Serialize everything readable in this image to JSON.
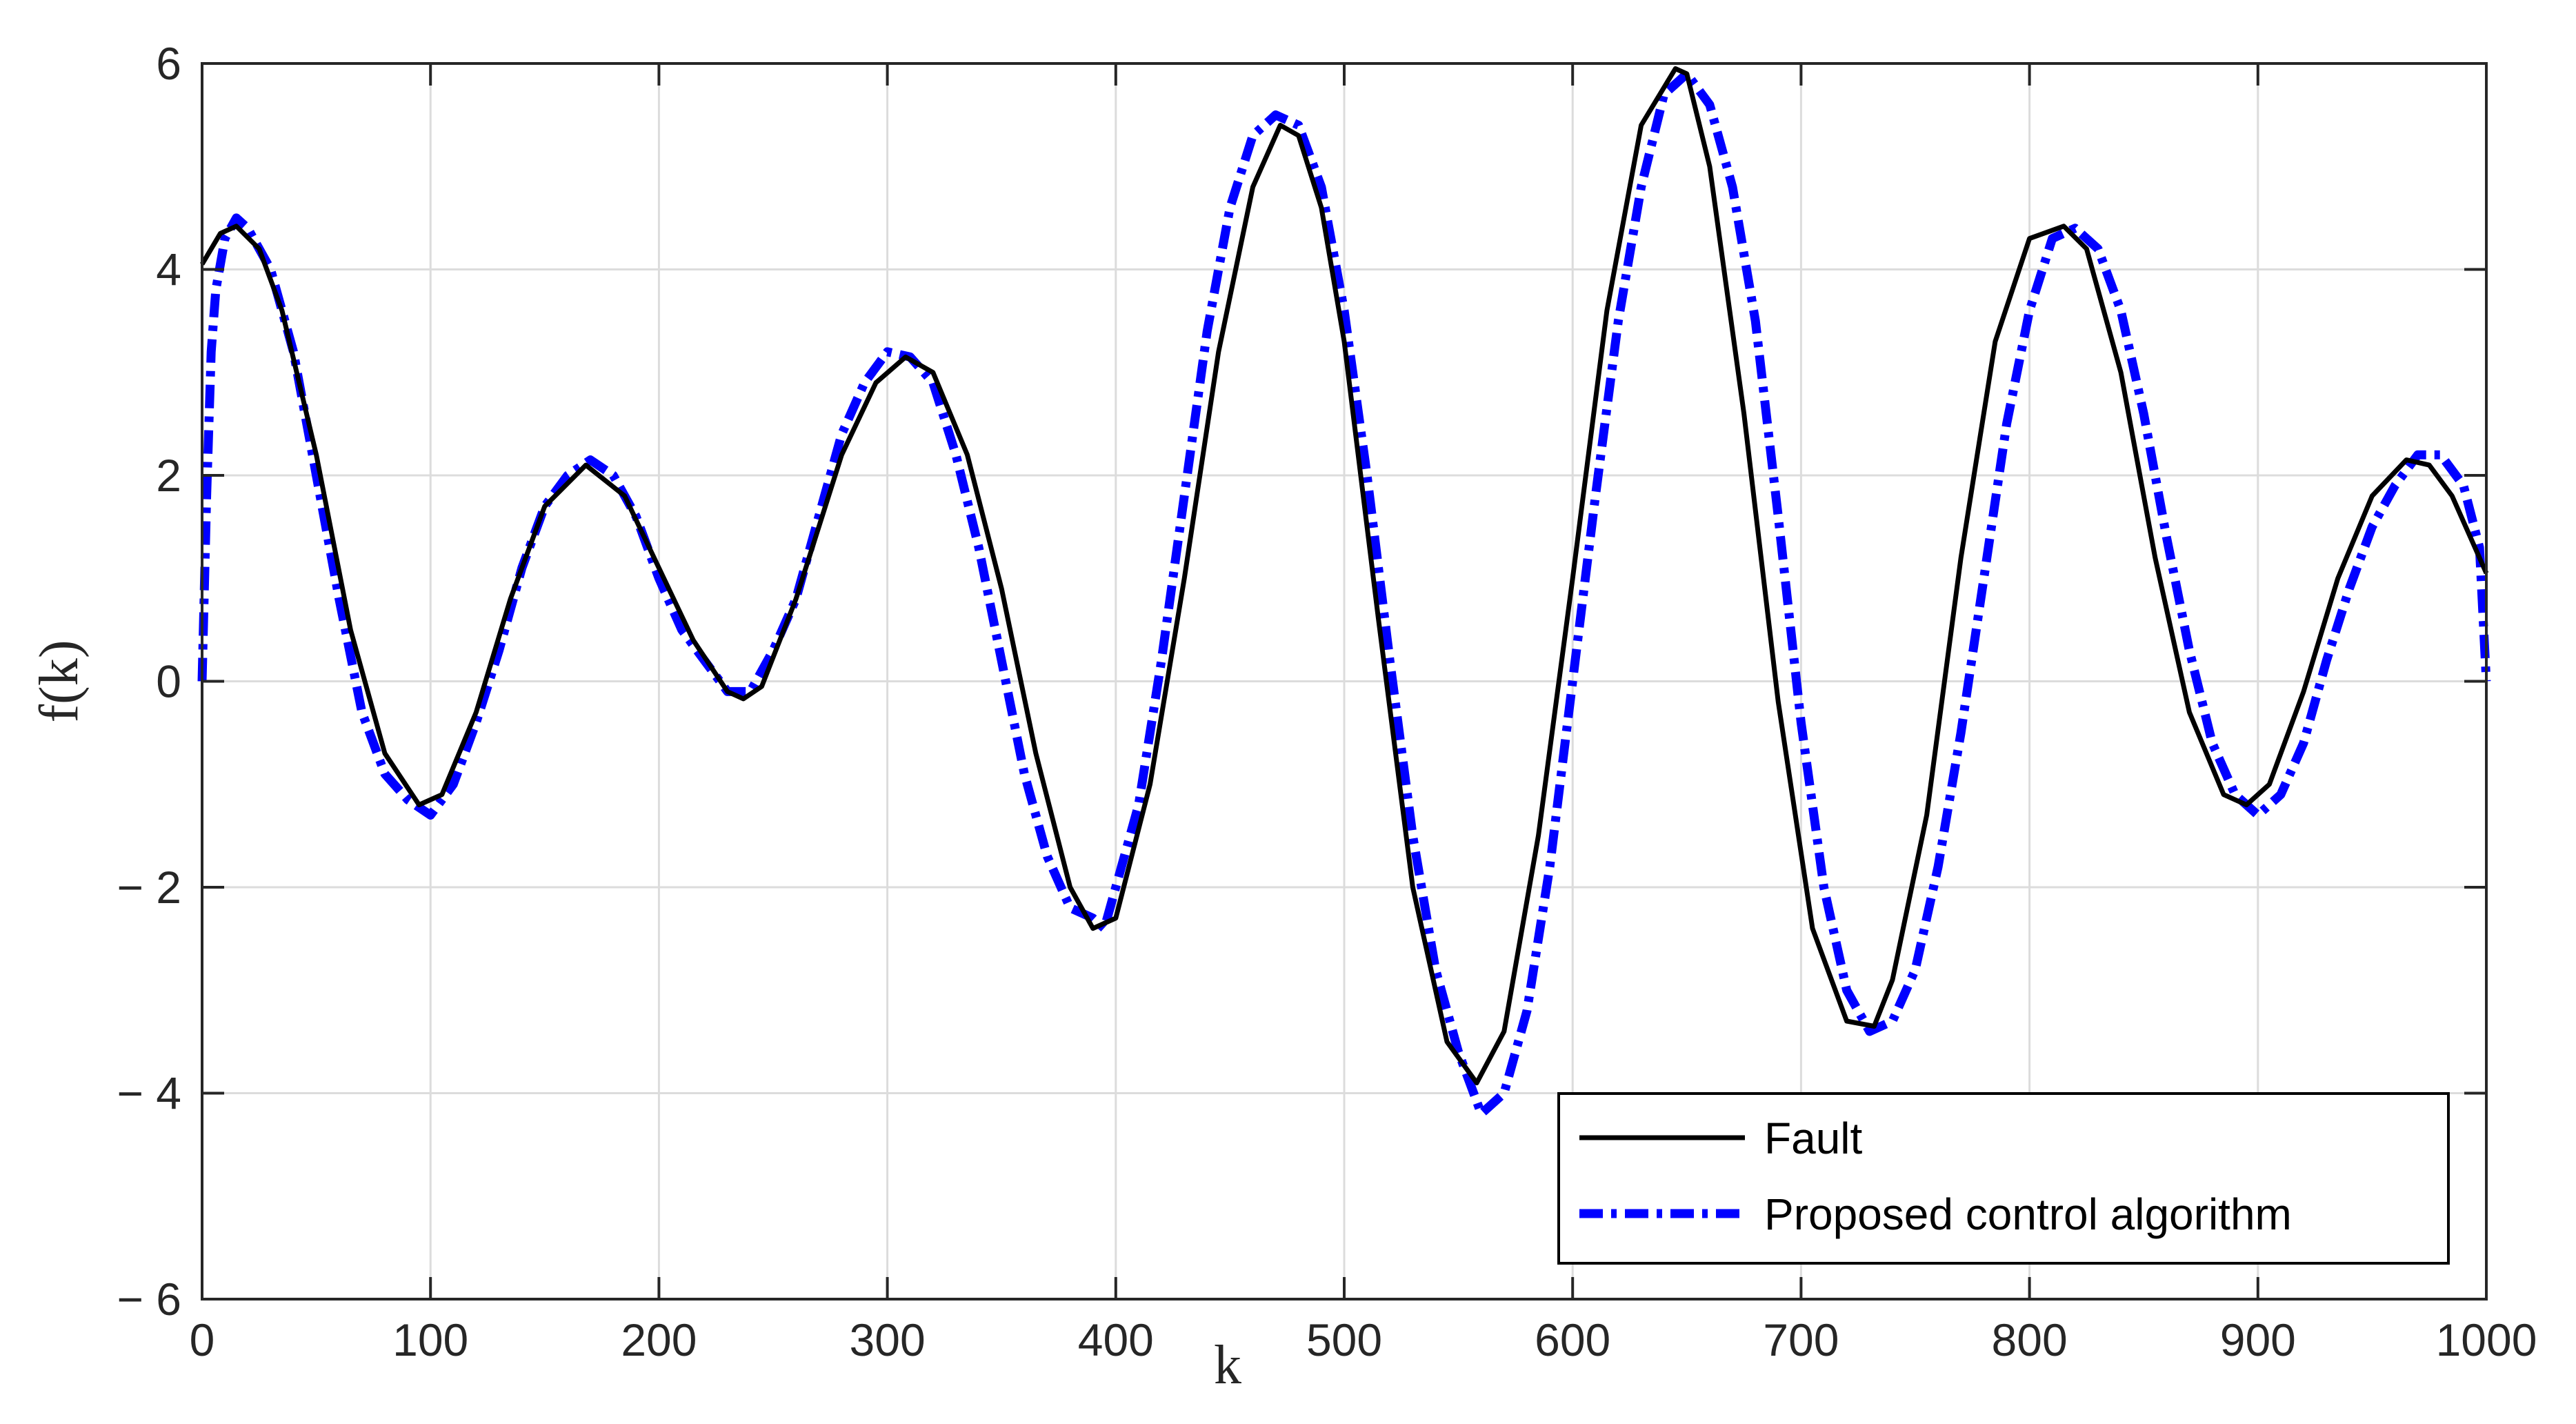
{
  "chart_data": {
    "type": "line",
    "title": "",
    "xlabel": "k",
    "ylabel": "f(k)",
    "xlim": [
      0,
      1000
    ],
    "ylim": [
      -6,
      6
    ],
    "xticks": [
      0,
      100,
      200,
      300,
      400,
      500,
      600,
      700,
      800,
      900,
      1000
    ],
    "yticks": [
      -6,
      -4,
      -2,
      0,
      2,
      4,
      6
    ],
    "xtick_labels": [
      "0",
      "100",
      "200",
      "300",
      "400",
      "500",
      "600",
      "700",
      "800",
      "900",
      "1000"
    ],
    "ytick_labels": [
      "− 6",
      "− 4",
      "− 2",
      "0",
      "2",
      "4",
      "6"
    ],
    "grid": true,
    "legend_position": "bottom-right",
    "series": [
      {
        "name": "Fault",
        "color": "#000000",
        "line_style": "solid",
        "x": [
          0,
          8,
          15,
          25,
          35,
          50,
          65,
          80,
          95,
          105,
          120,
          135,
          150,
          168,
          185,
          200,
          215,
          230,
          237,
          245,
          260,
          280,
          295,
          308,
          320,
          335,
          350,
          365,
          380,
          390,
          400,
          415,
          430,
          445,
          460,
          472,
          480,
          490,
          500,
          515,
          530,
          545,
          558,
          570,
          585,
          600,
          615,
          630,
          645,
          650,
          660,
          675,
          690,
          705,
          720,
          732,
          740,
          755,
          770,
          785,
          800,
          815,
          825,
          840,
          855,
          870,
          885,
          895,
          905,
          920,
          935,
          950,
          965,
          975,
          985,
          1000
        ],
        "y": [
          4.05,
          4.35,
          4.42,
          4.2,
          3.6,
          2.2,
          0.5,
          -0.7,
          -1.2,
          -1.1,
          -0.3,
          0.8,
          1.7,
          2.1,
          1.8,
          1.1,
          0.4,
          -0.1,
          -0.17,
          -0.05,
          0.8,
          2.2,
          2.9,
          3.15,
          3.0,
          2.2,
          0.9,
          -0.7,
          -2.0,
          -2.4,
          -2.3,
          -1.0,
          1.0,
          3.2,
          4.8,
          5.4,
          5.3,
          4.6,
          3.3,
          0.6,
          -2.0,
          -3.5,
          -3.9,
          -3.4,
          -1.5,
          1.0,
          3.6,
          5.4,
          5.95,
          5.9,
          5.0,
          2.6,
          -0.2,
          -2.4,
          -3.3,
          -3.35,
          -2.9,
          -1.3,
          1.2,
          3.3,
          4.3,
          4.42,
          4.2,
          3.0,
          1.2,
          -0.3,
          -1.1,
          -1.2,
          -1.0,
          -0.1,
          1.0,
          1.8,
          2.15,
          2.1,
          1.8,
          1.05
        ]
      },
      {
        "name": "Proposed control algorithm",
        "color": "#0000ff",
        "line_style": "dash-dot",
        "x": [
          0,
          2,
          4,
          6,
          10,
          15,
          20,
          30,
          40,
          50,
          60,
          70,
          80,
          90,
          100,
          110,
          120,
          130,
          140,
          150,
          160,
          170,
          180,
          190,
          200,
          210,
          220,
          230,
          240,
          250,
          260,
          270,
          280,
          290,
          300,
          310,
          320,
          330,
          340,
          350,
          360,
          370,
          380,
          390,
          395,
          400,
          410,
          420,
          430,
          440,
          450,
          460,
          470,
          480,
          490,
          500,
          510,
          520,
          530,
          540,
          550,
          560,
          570,
          580,
          590,
          600,
          610,
          620,
          630,
          640,
          650,
          660,
          670,
          680,
          690,
          700,
          710,
          720,
          730,
          740,
          750,
          760,
          770,
          780,
          790,
          800,
          810,
          820,
          830,
          840,
          850,
          860,
          870,
          880,
          890,
          900,
          910,
          920,
          930,
          940,
          950,
          960,
          970,
          980,
          990,
          997,
          1000
        ],
        "y": [
          0.0,
          1.8,
          3.2,
          3.8,
          4.3,
          4.5,
          4.4,
          4.0,
          3.2,
          2.0,
          0.8,
          -0.3,
          -0.9,
          -1.15,
          -1.3,
          -1.0,
          -0.4,
          0.3,
          1.1,
          1.7,
          2.0,
          2.15,
          2.0,
          1.6,
          1.0,
          0.5,
          0.2,
          -0.1,
          -0.1,
          0.3,
          0.8,
          1.6,
          2.4,
          2.9,
          3.2,
          3.15,
          2.9,
          2.2,
          1.3,
          0.2,
          -0.9,
          -1.7,
          -2.2,
          -2.3,
          -2.4,
          -2.0,
          -1.2,
          0.2,
          1.8,
          3.4,
          4.6,
          5.3,
          5.5,
          5.4,
          4.8,
          3.6,
          2.0,
          0.2,
          -1.5,
          -2.8,
          -3.6,
          -4.2,
          -4.0,
          -3.2,
          -1.8,
          0.0,
          1.8,
          3.5,
          4.8,
          5.7,
          5.9,
          5.6,
          4.8,
          3.5,
          1.6,
          -0.4,
          -2.0,
          -3.0,
          -3.4,
          -3.3,
          -2.8,
          -1.8,
          -0.5,
          1.0,
          2.5,
          3.6,
          4.3,
          4.4,
          4.2,
          3.6,
          2.6,
          1.4,
          0.3,
          -0.6,
          -1.1,
          -1.3,
          -1.1,
          -0.6,
          0.2,
          0.9,
          1.5,
          1.9,
          2.2,
          2.2,
          1.9,
          1.3,
          0.0
        ]
      }
    ]
  }
}
